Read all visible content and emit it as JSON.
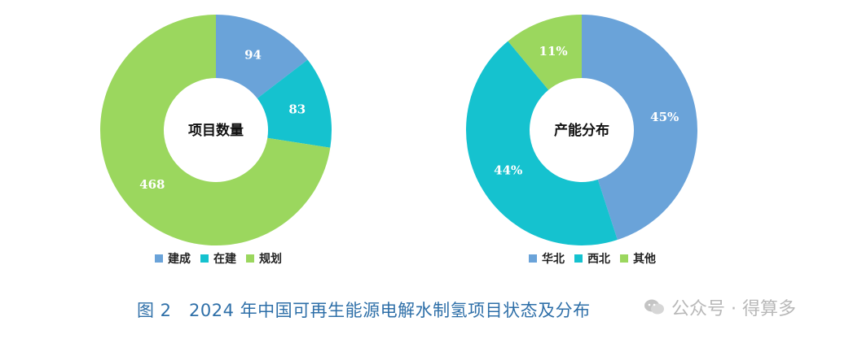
{
  "colors": {
    "blue": "#6aa3d9",
    "cyan": "#15c2cf",
    "green": "#9bd75e",
    "caption": "#2e6fa8"
  },
  "chart_data": [
    {
      "type": "pie",
      "donut": true,
      "center_label": "项目数量",
      "categories": [
        "建成",
        "在建",
        "规划"
      ],
      "values": [
        94,
        83,
        468
      ],
      "data_labels": [
        "94",
        "83",
        "468"
      ],
      "colors": [
        "#6aa3d9",
        "#15c2cf",
        "#9bd75e"
      ],
      "legend_position": "bottom"
    },
    {
      "type": "pie",
      "donut": true,
      "center_label": "产能分布",
      "categories": [
        "华北",
        "西北",
        "其他"
      ],
      "values": [
        45,
        44,
        11
      ],
      "data_labels": [
        "45%",
        "44%",
        "11%"
      ],
      "colors": [
        "#6aa3d9",
        "#15c2cf",
        "#9bd75e"
      ],
      "legend_position": "bottom"
    }
  ],
  "caption": "图 2　2024 年中国可再生能源电解水制氢项目状态及分布",
  "watermark": {
    "icon": "wechat-icon",
    "text": "公众号 · 得算多"
  }
}
